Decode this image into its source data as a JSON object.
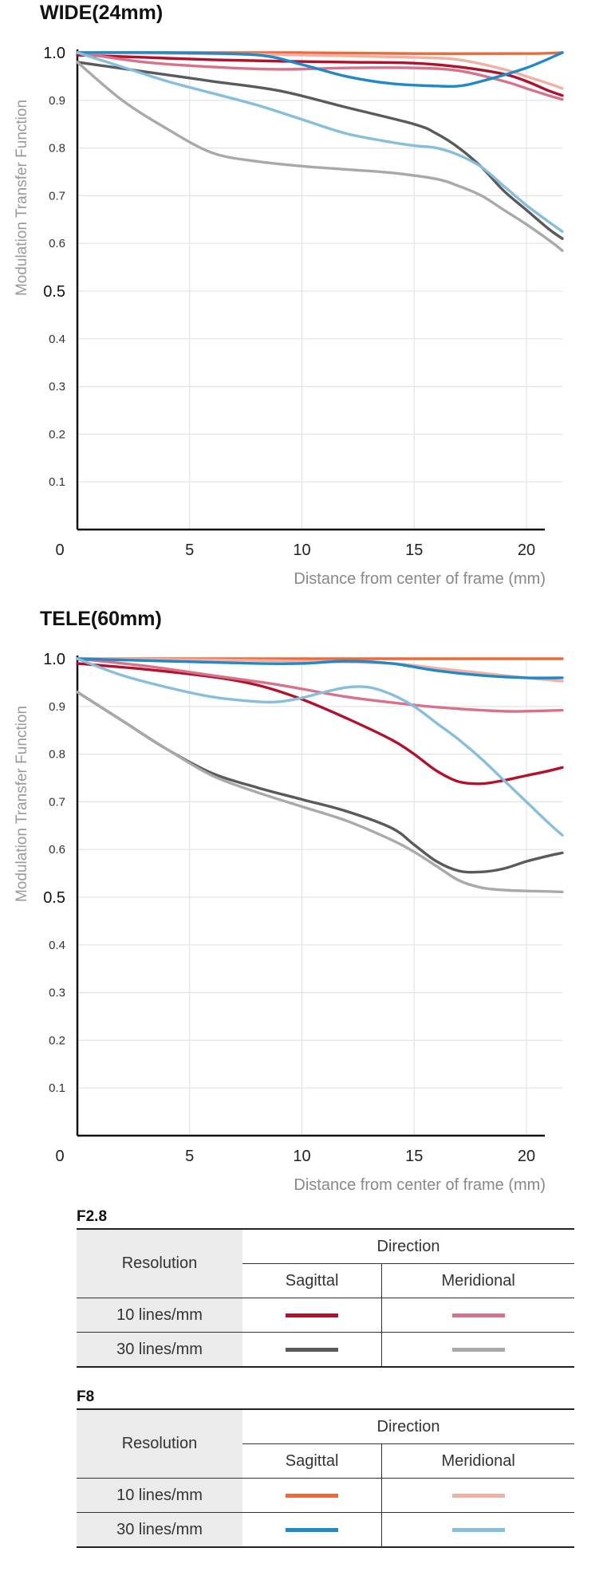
{
  "chart_data": [
    {
      "type": "line",
      "title": "WIDE(24mm)",
      "xlabel": "Distance from center of frame (mm)",
      "ylabel": "Modulation Transfer Function",
      "xlim": [
        0,
        21.6
      ],
      "ylim": [
        0,
        1.0
      ],
      "xticks": [
        "0",
        "5",
        "10",
        "15",
        "20"
      ],
      "yticks": [
        "0.1",
        "0.2",
        "0.3",
        "0.4",
        "0.5",
        "0.6",
        "0.7",
        "0.8",
        "0.9",
        "1.0"
      ],
      "series": [
        {
          "name": "F2.8 10 lines/mm Sagittal",
          "color": "#b2112e",
          "x": [
            0,
            3,
            6,
            9,
            12,
            15,
            17,
            19,
            20,
            21,
            21.6
          ],
          "y": [
            0.995,
            0.99,
            0.985,
            0.982,
            0.98,
            0.978,
            0.97,
            0.955,
            0.94,
            0.92,
            0.91
          ]
        },
        {
          "name": "F2.8 10 lines/mm Meridional",
          "color": "#d8728a",
          "x": [
            0,
            3,
            6,
            9,
            12,
            15,
            17,
            19,
            20,
            21,
            21.6
          ],
          "y": [
            1.0,
            0.98,
            0.97,
            0.965,
            0.968,
            0.968,
            0.962,
            0.94,
            0.925,
            0.91,
            0.902
          ]
        },
        {
          "name": "F2.8 30 lines/mm Sagittal",
          "color": "#5a5a5a",
          "x": [
            0,
            3,
            6,
            9,
            12,
            15,
            16,
            17,
            18,
            19,
            20,
            21,
            21.6
          ],
          "y": [
            0.98,
            0.96,
            0.94,
            0.92,
            0.885,
            0.85,
            0.83,
            0.8,
            0.76,
            0.71,
            0.67,
            0.63,
            0.61
          ]
        },
        {
          "name": "F2.8 30 lines/mm Meridional",
          "color": "#a9a9aa",
          "x": [
            0,
            2,
            4,
            6,
            8,
            10,
            12,
            14,
            16,
            17,
            18,
            19,
            20,
            21,
            21.6
          ],
          "y": [
            0.98,
            0.9,
            0.84,
            0.79,
            0.772,
            0.762,
            0.755,
            0.748,
            0.735,
            0.72,
            0.7,
            0.67,
            0.64,
            0.607,
            0.585
          ]
        },
        {
          "name": "F8 10 lines/mm Sagittal",
          "color": "#ef6a3b",
          "x": [
            0,
            5,
            10,
            15,
            20,
            21.6
          ],
          "y": [
            1.0,
            1.0,
            1.0,
            0.998,
            0.998,
            1.0
          ]
        },
        {
          "name": "F8 10 lines/mm Meridional",
          "color": "#f2b0a4",
          "x": [
            0,
            5,
            10,
            15,
            17,
            19,
            20,
            21,
            21.6
          ],
          "y": [
            1.0,
            0.998,
            0.995,
            0.99,
            0.985,
            0.965,
            0.95,
            0.935,
            0.925
          ]
        },
        {
          "name": "F8 30 lines/mm Sagittal",
          "color": "#1f8ac7",
          "x": [
            0,
            4,
            8,
            10,
            12,
            14,
            16,
            17,
            18,
            20,
            21.6
          ],
          "y": [
            1.0,
            1.0,
            0.995,
            0.975,
            0.95,
            0.935,
            0.93,
            0.93,
            0.94,
            0.968,
            1.0
          ]
        },
        {
          "name": "F8 30 lines/mm Meridional",
          "color": "#87bedc",
          "x": [
            0,
            2,
            4,
            6,
            8,
            10,
            12,
            14,
            15,
            16,
            17,
            18,
            19,
            20,
            21,
            21.6
          ],
          "y": [
            1.0,
            0.97,
            0.94,
            0.915,
            0.89,
            0.86,
            0.83,
            0.812,
            0.805,
            0.8,
            0.785,
            0.76,
            0.72,
            0.68,
            0.645,
            0.625
          ]
        }
      ]
    },
    {
      "type": "line",
      "title": "TELE(60mm)",
      "xlabel": "Distance from center of frame (mm)",
      "ylabel": "Modulation Transfer Function",
      "xlim": [
        0,
        21.6
      ],
      "ylim": [
        0,
        1.0
      ],
      "xticks": [
        "0",
        "5",
        "10",
        "15",
        "20"
      ],
      "yticks": [
        "0.1",
        "0.2",
        "0.3",
        "0.4",
        "0.5",
        "0.6",
        "0.7",
        "0.8",
        "0.9",
        "1.0"
      ],
      "series": [
        {
          "name": "F2.8 10 lines/mm Sagittal",
          "color": "#b2112e",
          "x": [
            0,
            3,
            6,
            8,
            10,
            12,
            14,
            15,
            16,
            17,
            18,
            19,
            20,
            21,
            21.6
          ],
          "y": [
            0.99,
            0.978,
            0.962,
            0.945,
            0.915,
            0.875,
            0.83,
            0.8,
            0.765,
            0.742,
            0.738,
            0.745,
            0.755,
            0.765,
            0.772
          ]
        },
        {
          "name": "F2.8 10 lines/mm Meridional",
          "color": "#d8728a",
          "x": [
            0,
            3,
            6,
            9,
            12,
            15,
            17,
            19,
            20,
            21.6
          ],
          "y": [
            1.0,
            0.985,
            0.965,
            0.945,
            0.92,
            0.903,
            0.895,
            0.89,
            0.89,
            0.892
          ]
        },
        {
          "name": "F2.8 30 lines/mm Sagittal",
          "color": "#5a5a5a",
          "x": [
            0,
            2,
            4,
            6,
            8,
            10,
            12,
            14,
            15,
            16,
            17,
            18,
            19,
            20,
            21,
            21.6
          ],
          "y": [
            0.93,
            0.87,
            0.81,
            0.76,
            0.73,
            0.705,
            0.68,
            0.645,
            0.61,
            0.575,
            0.555,
            0.553,
            0.56,
            0.575,
            0.587,
            0.593
          ]
        },
        {
          "name": "F2.8 30 lines/mm Meridional",
          "color": "#a9a9aa",
          "x": [
            0,
            2,
            4,
            6,
            8,
            10,
            12,
            14,
            15,
            16,
            17,
            18,
            19,
            20,
            21,
            21.6
          ],
          "y": [
            0.93,
            0.87,
            0.81,
            0.755,
            0.72,
            0.69,
            0.66,
            0.62,
            0.595,
            0.565,
            0.535,
            0.52,
            0.515,
            0.513,
            0.512,
            0.511
          ]
        },
        {
          "name": "F8 10 lines/mm Sagittal",
          "color": "#ef6a3b",
          "x": [
            0,
            5,
            10,
            15,
            20,
            21.6
          ],
          "y": [
            1.0,
            1.0,
            1.0,
            1.0,
            1.0,
            1.0
          ]
        },
        {
          "name": "F8 10 lines/mm Meridional",
          "color": "#f2b0a4",
          "x": [
            0,
            5,
            10,
            14,
            16,
            18,
            20,
            21.6
          ],
          "y": [
            1.0,
            0.998,
            0.995,
            0.99,
            0.98,
            0.97,
            0.96,
            0.953
          ]
        },
        {
          "name": "F8 30 lines/mm Sagittal",
          "color": "#1f8ac7",
          "x": [
            0,
            4,
            8,
            10,
            12,
            14,
            16,
            18,
            20,
            21.6
          ],
          "y": [
            1.0,
            0.995,
            0.99,
            0.99,
            0.995,
            0.99,
            0.975,
            0.965,
            0.96,
            0.96
          ]
        },
        {
          "name": "F8 30 lines/mm Meridional",
          "color": "#87bedc",
          "x": [
            0,
            2,
            4,
            6,
            8,
            9,
            10,
            11,
            12,
            13,
            14,
            15,
            16,
            17,
            18,
            19,
            20,
            21,
            21.6
          ],
          "y": [
            1.0,
            0.965,
            0.94,
            0.92,
            0.91,
            0.91,
            0.918,
            0.93,
            0.94,
            0.94,
            0.925,
            0.9,
            0.865,
            0.83,
            0.79,
            0.745,
            0.7,
            0.655,
            0.63
          ]
        }
      ]
    }
  ],
  "legend_tables": [
    {
      "title": "F2.8",
      "resolution_label": "Resolution",
      "direction_label": "Direction",
      "sagittal_label": "Sagittal",
      "meridional_label": "Meridional",
      "rows": [
        {
          "label": "10 lines/mm",
          "sagittal_color": "#b2112e",
          "meridional_color": "#d8728a"
        },
        {
          "label": "30 lines/mm",
          "sagittal_color": "#5a5a5a",
          "meridional_color": "#a9a9aa"
        }
      ]
    },
    {
      "title": "F8",
      "resolution_label": "Resolution",
      "direction_label": "Direction",
      "sagittal_label": "Sagittal",
      "meridional_label": "Meridional",
      "rows": [
        {
          "label": "10 lines/mm",
          "sagittal_color": "#ef6a3b",
          "meridional_color": "#f2b0a4"
        },
        {
          "label": "30 lines/mm",
          "sagittal_color": "#1f8ac7",
          "meridional_color": "#87bedc"
        }
      ]
    }
  ]
}
